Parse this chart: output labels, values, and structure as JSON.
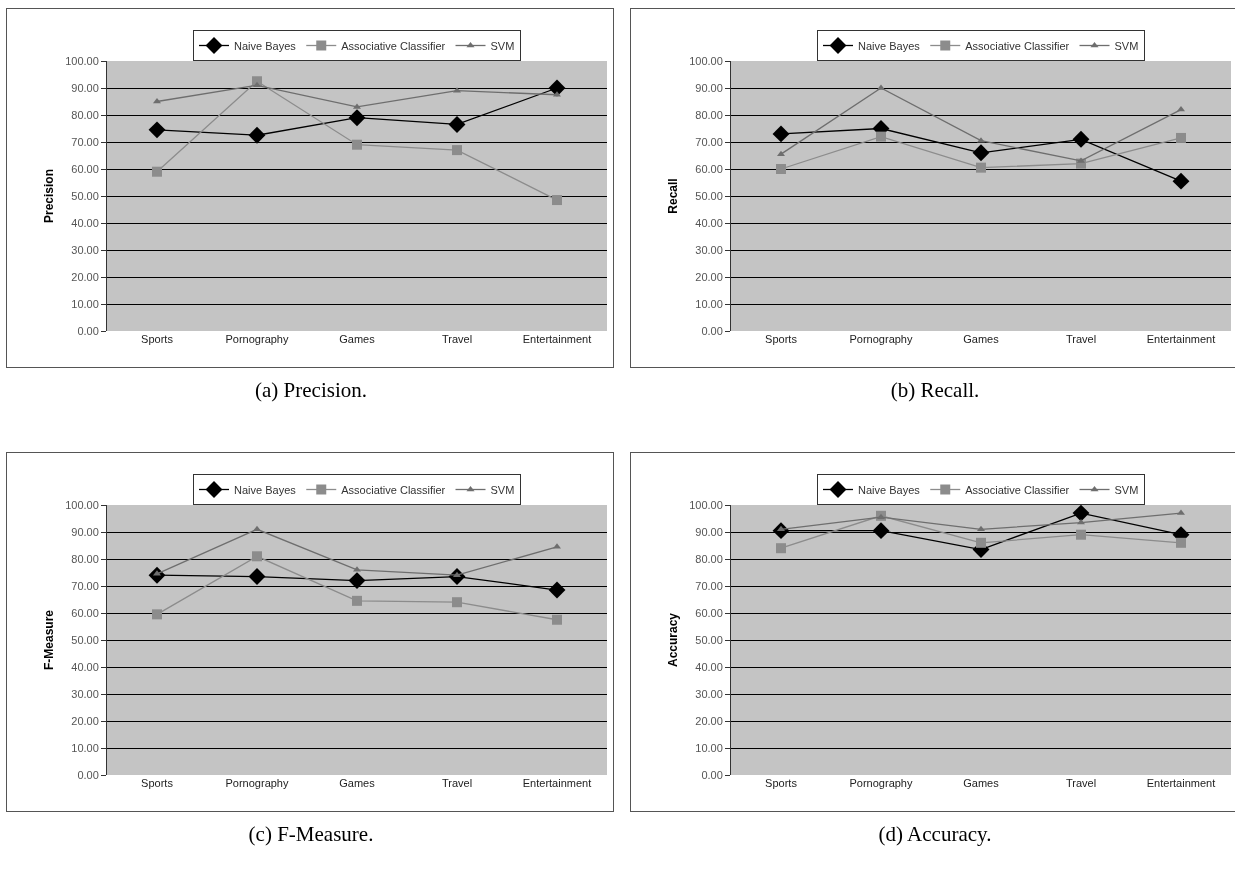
{
  "chart_data": [
    {
      "type": "line",
      "title": "(a) Precision.",
      "ylabel": "Precision",
      "categories": [
        "Sports",
        "Pornography",
        "Games",
        "Travel",
        "Entertainment"
      ],
      "ylim": [
        0,
        100
      ],
      "yticks": [
        {
          "value": 0,
          "label": "0.00"
        },
        {
          "value": 10,
          "label": "10.00"
        },
        {
          "value": 20,
          "label": "20.00"
        },
        {
          "value": 30,
          "label": "30.00"
        },
        {
          "value": 40,
          "label": "40.00"
        },
        {
          "value": 50,
          "label": "50.00"
        },
        {
          "value": 60,
          "label": "60.00"
        },
        {
          "value": 70,
          "label": "70.00"
        },
        {
          "value": 80,
          "label": "80.00"
        },
        {
          "value": 90,
          "label": "90.00"
        },
        {
          "value": 100,
          "label": "100.00"
        }
      ],
      "grid": "y",
      "legend": "top",
      "series": [
        {
          "name": "Naive Bayes",
          "color": "#000000",
          "marker": "diamond",
          "values": [
            74.5,
            72.5,
            79,
            76.5,
            90
          ]
        },
        {
          "name": "Associative Classifier",
          "color": "#8c8c8c",
          "marker": "square",
          "values": [
            59,
            92.5,
            69,
            67,
            48.5
          ]
        },
        {
          "name": "SVM",
          "color": "#6e6e6e",
          "marker": "triangle",
          "values": [
            85,
            91,
            83,
            89,
            87.5
          ]
        }
      ]
    },
    {
      "type": "line",
      "title": "(b) Recall.",
      "ylabel": "Recall",
      "categories": [
        "Sports",
        "Pornography",
        "Games",
        "Travel",
        "Entertainment"
      ],
      "ylim": [
        0,
        100
      ],
      "yticks": [
        {
          "value": 0,
          "label": "0.00"
        },
        {
          "value": 10,
          "label": "10.00"
        },
        {
          "value": 20,
          "label": "20.00"
        },
        {
          "value": 30,
          "label": "30.00"
        },
        {
          "value": 40,
          "label": "40.00"
        },
        {
          "value": 50,
          "label": "50.00"
        },
        {
          "value": 60,
          "label": "60.00"
        },
        {
          "value": 70,
          "label": "70.00"
        },
        {
          "value": 80,
          "label": "80.00"
        },
        {
          "value": 90,
          "label": "90.00"
        },
        {
          "value": 100,
          "label": "100.00"
        }
      ],
      "grid": "y",
      "legend": "top",
      "series": [
        {
          "name": "Naive Bayes",
          "color": "#000000",
          "marker": "diamond",
          "values": [
            73,
            75,
            66,
            71,
            55.5
          ]
        },
        {
          "name": "Associative Classifier",
          "color": "#8c8c8c",
          "marker": "square",
          "values": [
            60,
            72,
            60.5,
            62,
            71.5
          ]
        },
        {
          "name": "SVM",
          "color": "#6e6e6e",
          "marker": "triangle",
          "values": [
            65.5,
            90,
            70.5,
            63,
            82
          ]
        }
      ]
    },
    {
      "type": "line",
      "title": "(c) F-Measure.",
      "ylabel": "F-Measure",
      "categories": [
        "Sports",
        "Pornography",
        "Games",
        "Travel",
        "Entertainment"
      ],
      "ylim": [
        0,
        100
      ],
      "yticks": [
        {
          "value": 0,
          "label": "0.00"
        },
        {
          "value": 10,
          "label": "10.00"
        },
        {
          "value": 20,
          "label": "20.00"
        },
        {
          "value": 30,
          "label": "30.00"
        },
        {
          "value": 40,
          "label": "40.00"
        },
        {
          "value": 50,
          "label": "50.00"
        },
        {
          "value": 60,
          "label": "60.00"
        },
        {
          "value": 70,
          "label": "70.00"
        },
        {
          "value": 80,
          "label": "80.00"
        },
        {
          "value": 90,
          "label": "90.00"
        },
        {
          "value": 100,
          "label": "100.00"
        }
      ],
      "grid": "y",
      "legend": "top",
      "series": [
        {
          "name": "Naive Bayes",
          "color": "#000000",
          "marker": "diamond",
          "values": [
            74,
            73.5,
            72,
            73.5,
            68.5
          ]
        },
        {
          "name": "Associative Classifier",
          "color": "#8c8c8c",
          "marker": "square",
          "values": [
            59.5,
            81,
            64.5,
            64,
            57.5
          ]
        },
        {
          "name": "SVM",
          "color": "#6e6e6e",
          "marker": "triangle",
          "values": [
            74.5,
            91,
            76,
            74,
            84.5
          ]
        }
      ]
    },
    {
      "type": "line",
      "title": "(d) Accuracy.",
      "ylabel": "Accuracy",
      "categories": [
        "Sports",
        "Pornography",
        "Games",
        "Travel",
        "Entertainment"
      ],
      "ylim": [
        0,
        100
      ],
      "yticks": [
        {
          "value": 0,
          "label": "0.00"
        },
        {
          "value": 10,
          "label": "10.00"
        },
        {
          "value": 20,
          "label": "20.00"
        },
        {
          "value": 30,
          "label": "30.00"
        },
        {
          "value": 40,
          "label": "40.00"
        },
        {
          "value": 50,
          "label": "50.00"
        },
        {
          "value": 60,
          "label": "60.00"
        },
        {
          "value": 70,
          "label": "70.00"
        },
        {
          "value": 80,
          "label": "80.00"
        },
        {
          "value": 90,
          "label": "90.00"
        },
        {
          "value": 100,
          "label": "100.00"
        }
      ],
      "grid": "y",
      "legend": "top",
      "series": [
        {
          "name": "Naive Bayes",
          "color": "#000000",
          "marker": "diamond",
          "values": [
            90.5,
            90.5,
            83.5,
            97,
            89
          ]
        },
        {
          "name": "Associative Classifier",
          "color": "#8c8c8c",
          "marker": "square",
          "values": [
            84,
            96,
            86,
            89,
            86
          ]
        },
        {
          "name": "SVM",
          "color": "#6e6e6e",
          "marker": "triangle",
          "values": [
            91,
            95.5,
            91,
            93.5,
            97
          ]
        }
      ]
    }
  ]
}
